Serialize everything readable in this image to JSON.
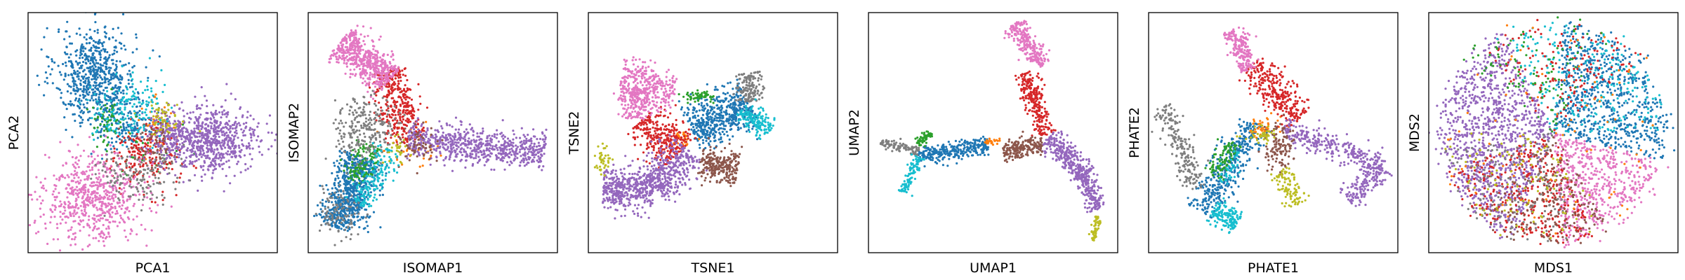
{
  "chart_data": [
    {
      "type": "scatter",
      "xlabel": "PCA1",
      "ylabel": "PCA2",
      "xlim": [
        0,
        10
      ],
      "ylim": [
        0,
        10
      ],
      "grid": false,
      "series": [
        {
          "color": "#1f77b4",
          "clusters": [
            {
              "cx": 2.7,
              "cy": 7.4,
              "sx": 0.8,
              "sy": 1.0,
              "n": 650
            },
            {
              "cx": 3.9,
              "cy": 5.4,
              "sx": 0.6,
              "sy": 0.6,
              "n": 150
            }
          ]
        },
        {
          "color": "#ff7f0e",
          "clusters": [
            {
              "cx": 5.2,
              "cy": 5.3,
              "sx": 0.5,
              "sy": 0.5,
              "n": 40
            }
          ]
        },
        {
          "color": "#2ca02c",
          "clusters": [
            {
              "cx": 3.2,
              "cy": 5.4,
              "sx": 0.4,
              "sy": 0.5,
              "n": 60
            },
            {
              "cx": 5.1,
              "cy": 4.2,
              "sx": 0.6,
              "sy": 0.6,
              "n": 30
            }
          ]
        },
        {
          "color": "#d62728",
          "clusters": [
            {
              "cx": 4.7,
              "cy": 4.0,
              "sx": 0.7,
              "sy": 0.7,
              "n": 200
            }
          ]
        },
        {
          "color": "#9467bd",
          "clusters": [
            {
              "cx": 7.3,
              "cy": 4.7,
              "sx": 1.0,
              "sy": 0.7,
              "n": 700
            },
            {
              "cx": 5.6,
              "cy": 4.8,
              "sx": 0.5,
              "sy": 0.5,
              "n": 150
            }
          ]
        },
        {
          "color": "#8c564b",
          "clusters": [
            {
              "cx": 5.0,
              "cy": 4.5,
              "sx": 0.5,
              "sy": 0.5,
              "n": 60
            }
          ]
        },
        {
          "color": "#e377c2",
          "clusters": [
            {
              "cx": 2.6,
              "cy": 2.3,
              "sx": 1.0,
              "sy": 0.9,
              "n": 650
            }
          ]
        },
        {
          "color": "#7f7f7f",
          "clusters": [
            {
              "cx": 4.4,
              "cy": 3.3,
              "sx": 0.8,
              "sy": 0.6,
              "n": 150
            }
          ]
        },
        {
          "color": "#bcbd22",
          "clusters": [
            {
              "cx": 5.4,
              "cy": 5.6,
              "sx": 0.4,
              "sy": 0.4,
              "n": 50
            }
          ]
        },
        {
          "color": "#17becf",
          "clusters": [
            {
              "cx": 4.0,
              "cy": 6.0,
              "sx": 0.7,
              "sy": 0.7,
              "n": 150
            }
          ]
        }
      ]
    },
    {
      "type": "scatter",
      "xlabel": "ISOMAP1",
      "ylabel": "ISOMAP2",
      "xlim": [
        0,
        10
      ],
      "ylim": [
        0,
        10
      ],
      "grid": false,
      "series": [
        {
          "color": "#1f77b4",
          "clusters": [
            {
              "x1": 2.2,
              "y1": 4.0,
              "x2": 1.2,
              "y2": 1.0,
              "w": 0.45,
              "n": 700
            }
          ]
        },
        {
          "color": "#ff7f0e",
          "clusters": [
            {
              "cx": 4.2,
              "cy": 4.6,
              "sx": 0.5,
              "sy": 0.5,
              "n": 40
            }
          ]
        },
        {
          "color": "#2ca02c",
          "clusters": [
            {
              "x1": 2.5,
              "y1": 4.5,
              "x2": 1.8,
              "y2": 3.0,
              "w": 0.3,
              "n": 120
            }
          ]
        },
        {
          "color": "#d62728",
          "clusters": [
            {
              "x1": 3.2,
              "y1": 7.6,
              "x2": 4.0,
              "y2": 4.6,
              "w": 0.4,
              "n": 350
            }
          ]
        },
        {
          "color": "#9467bd",
          "clusters": [
            {
              "x1": 4.0,
              "y1": 4.7,
              "x2": 9.5,
              "y2": 4.2,
              "w": 0.35,
              "n": 700
            }
          ]
        },
        {
          "color": "#8c564b",
          "clusters": [
            {
              "cx": 4.4,
              "cy": 4.5,
              "sx": 0.4,
              "sy": 0.4,
              "n": 60
            }
          ]
        },
        {
          "color": "#e377c2",
          "clusters": [
            {
              "x1": 1.3,
              "y1": 8.8,
              "x2": 3.3,
              "y2": 7.2,
              "w": 0.4,
              "n": 550
            }
          ]
        },
        {
          "color": "#7f7f7f",
          "clusters": [
            {
              "cx": 2.3,
              "cy": 5.1,
              "sx": 0.6,
              "sy": 0.7,
              "n": 250
            },
            {
              "cx": 1.2,
              "cy": 1.8,
              "sx": 0.4,
              "sy": 0.5,
              "n": 100
            }
          ]
        },
        {
          "color": "#bcbd22",
          "clusters": [
            {
              "cx": 3.6,
              "cy": 4.3,
              "sx": 0.3,
              "sy": 0.3,
              "n": 30
            }
          ]
        },
        {
          "color": "#17becf",
          "clusters": [
            {
              "x1": 3.3,
              "y1": 4.3,
              "x2": 2.0,
              "y2": 2.0,
              "w": 0.3,
              "n": 150
            }
          ]
        }
      ]
    },
    {
      "type": "scatter",
      "xlabel": "TSNE1",
      "ylabel": "TSNE2",
      "xlim": [
        0,
        10
      ],
      "ylim": [
        0,
        10
      ],
      "grid": false,
      "series": [
        {
          "color": "#1f77b4",
          "clusters": [
            {
              "x1": 4.1,
              "y1": 5.1,
              "x2": 6.5,
              "y2": 6.2,
              "w": 0.5,
              "n": 500
            }
          ]
        },
        {
          "color": "#ff7f0e",
          "clusters": [
            {
              "cx": 3.8,
              "cy": 4.7,
              "sx": 0.2,
              "sy": 0.2,
              "n": 30
            }
          ]
        },
        {
          "color": "#2ca02c",
          "clusters": [
            {
              "cx": 4.4,
              "cy": 6.5,
              "sx": 0.3,
              "sy": 0.1,
              "n": 60
            }
          ]
        },
        {
          "color": "#d62728",
          "clusters": [
            {
              "x1": 2.2,
              "y1": 5.6,
              "x2": 3.6,
              "y2": 4.1,
              "w": 0.45,
              "n": 300
            }
          ]
        },
        {
          "color": "#9467bd",
          "clusters": [
            {
              "x1": 0.6,
              "y1": 2.7,
              "x2": 2.6,
              "y2": 2.6,
              "w": 0.45,
              "n": 400
            },
            {
              "x1": 2.6,
              "y1": 2.6,
              "x2": 4.0,
              "y2": 4.3,
              "w": 0.45,
              "n": 350
            }
          ]
        },
        {
          "color": "#8c564b",
          "clusters": [
            {
              "x1": 4.5,
              "y1": 3.8,
              "x2": 6.0,
              "y2": 3.5,
              "w": 0.35,
              "n": 250
            }
          ]
        },
        {
          "color": "#e377c2",
          "clusters": [
            {
              "x1": 1.3,
              "y1": 7.1,
              "x2": 3.5,
              "y2": 6.8,
              "w": 0.45,
              "n": 300
            },
            {
              "x1": 1.9,
              "y1": 6.9,
              "x2": 1.9,
              "y2": 5.6,
              "w": 0.35,
              "n": 150
            }
          ]
        },
        {
          "color": "#7f7f7f",
          "clusters": [
            {
              "x1": 6.4,
              "y1": 7.5,
              "x2": 6.5,
              "y2": 6.3,
              "w": 0.25,
              "n": 150
            }
          ]
        },
        {
          "color": "#bcbd22",
          "clusters": [
            {
              "cx": 0.6,
              "cy": 3.8,
              "sx": 0.15,
              "sy": 0.3,
              "n": 40
            }
          ]
        },
        {
          "color": "#17becf",
          "clusters": [
            {
              "x1": 6.2,
              "y1": 6.0,
              "x2": 7.2,
              "y2": 5.0,
              "w": 0.25,
              "n": 150
            }
          ]
        }
      ]
    },
    {
      "type": "scatter",
      "xlabel": "UMAP1",
      "ylabel": "UMAP2",
      "xlim": [
        0,
        10
      ],
      "ylim": [
        0,
        10
      ],
      "grid": false,
      "series": [
        {
          "color": "#1f77b4",
          "clusters": [
            {
              "x1": 2.0,
              "y1": 4.0,
              "x2": 4.8,
              "y2": 4.5,
              "w": 0.18,
              "n": 300
            }
          ]
        },
        {
          "color": "#ff7f0e",
          "clusters": [
            {
              "cx": 4.9,
              "cy": 4.6,
              "sx": 0.15,
              "sy": 0.1,
              "n": 30
            }
          ]
        },
        {
          "color": "#2ca02c",
          "clusters": [
            {
              "x1": 2.0,
              "y1": 4.5,
              "x2": 2.5,
              "y2": 5.0,
              "w": 0.1,
              "n": 60
            }
          ]
        },
        {
          "color": "#d62728",
          "clusters": [
            {
              "x1": 6.3,
              "y1": 7.5,
              "x2": 7.1,
              "y2": 4.9,
              "w": 0.2,
              "n": 250
            }
          ]
        },
        {
          "color": "#9467bd",
          "clusters": [
            {
              "x1": 7.2,
              "y1": 4.8,
              "x2": 8.7,
              "y2": 3.2,
              "w": 0.25,
              "n": 300
            },
            {
              "x1": 8.7,
              "y1": 3.2,
              "x2": 9.2,
              "y2": 1.8,
              "w": 0.2,
              "n": 150
            }
          ]
        },
        {
          "color": "#8c564b",
          "clusters": [
            {
              "x1": 5.4,
              "y1": 4.2,
              "x2": 7.0,
              "y2": 4.5,
              "w": 0.18,
              "n": 200
            }
          ]
        },
        {
          "color": "#e377c2",
          "clusters": [
            {
              "x1": 5.8,
              "y1": 9.5,
              "x2": 7.0,
              "y2": 7.8,
              "w": 0.22,
              "n": 250
            }
          ]
        },
        {
          "color": "#7f7f7f",
          "clusters": [
            {
              "x1": 0.5,
              "y1": 4.6,
              "x2": 2.0,
              "y2": 4.2,
              "w": 0.1,
              "n": 100
            }
          ]
        },
        {
          "color": "#bcbd22",
          "clusters": [
            {
              "x1": 9.2,
              "y1": 1.5,
              "x2": 9.0,
              "y2": 0.5,
              "w": 0.08,
              "n": 50
            }
          ]
        },
        {
          "color": "#17becf",
          "clusters": [
            {
              "x1": 2.0,
              "y1": 4.0,
              "x2": 1.4,
              "y2": 2.5,
              "w": 0.12,
              "n": 100
            }
          ]
        }
      ]
    },
    {
      "type": "scatter",
      "xlabel": "PHATE1",
      "ylabel": "PHATE2",
      "xlim": [
        0,
        10
      ],
      "ylim": [
        0,
        10
      ],
      "grid": false,
      "series": [
        {
          "color": "#1f77b4",
          "clusters": [
            {
              "x1": 2.1,
              "y1": 1.7,
              "x2": 4.3,
              "y2": 5.4,
              "w": 0.35,
              "n": 400
            }
          ]
        },
        {
          "color": "#ff7f0e",
          "clusters": [
            {
              "cx": 4.5,
              "cy": 5.2,
              "sx": 0.3,
              "sy": 0.2,
              "n": 40
            }
          ]
        },
        {
          "color": "#2ca02c",
          "clusters": [
            {
              "x1": 2.6,
              "y1": 3.2,
              "x2": 3.4,
              "y2": 4.6,
              "w": 0.2,
              "n": 100
            }
          ]
        },
        {
          "color": "#d62728",
          "clusters": [
            {
              "x1": 4.1,
              "y1": 7.8,
              "x2": 6.1,
              "y2": 5.6,
              "w": 0.35,
              "n": 300
            }
          ]
        },
        {
          "color": "#9467bd",
          "clusters": [
            {
              "x1": 5.4,
              "y1": 5.2,
              "x2": 9.4,
              "y2": 3.6,
              "w": 0.25,
              "n": 300
            },
            {
              "x1": 9.4,
              "y1": 3.6,
              "x2": 8.0,
              "y2": 2.2,
              "w": 0.25,
              "n": 150
            }
          ]
        },
        {
          "color": "#8c564b",
          "clusters": [
            {
              "cx": 5.2,
              "cy": 4.4,
              "sx": 0.3,
              "sy": 0.5,
              "n": 120
            }
          ]
        },
        {
          "color": "#e377c2",
          "clusters": [
            {
              "x1": 3.4,
              "y1": 9.3,
              "x2": 4.0,
              "y2": 7.6,
              "w": 0.22,
              "n": 200
            }
          ]
        },
        {
          "color": "#7f7f7f",
          "clusters": [
            {
              "x1": 0.6,
              "y1": 6.1,
              "x2": 2.0,
              "y2": 2.6,
              "w": 0.25,
              "n": 200
            }
          ]
        },
        {
          "color": "#bcbd22",
          "clusters": [
            {
              "x1": 5.4,
              "y1": 3.5,
              "x2": 6.0,
              "y2": 2.0,
              "w": 0.25,
              "n": 100
            },
            {
              "cx": 4.5,
              "cy": 5.0,
              "sx": 0.3,
              "sy": 0.2,
              "n": 40
            }
          ]
        },
        {
          "color": "#17becf",
          "clusters": [
            {
              "x1": 2.6,
              "y1": 1.8,
              "x2": 3.6,
              "y2": 1.2,
              "w": 0.25,
              "n": 150
            },
            {
              "x1": 3.0,
              "y1": 2.8,
              "x2": 3.6,
              "y2": 4.2,
              "w": 0.15,
              "n": 40
            }
          ]
        }
      ]
    },
    {
      "type": "scatter",
      "xlabel": "MDS1",
      "ylabel": "MDS2",
      "xlim": [
        0,
        10
      ],
      "ylim": [
        0,
        10
      ],
      "grid": false,
      "series": [
        {
          "color": "#9467bd",
          "clusters": [
            {
              "disk": true,
              "cx": 5,
              "cy": 5,
              "r": 4.5,
              "a0": 115,
              "a1": 250,
              "n": 1100
            }
          ]
        },
        {
          "color": "#1f77b4",
          "clusters": [
            {
              "disk": true,
              "cx": 5,
              "cy": 5,
              "r": 4.5,
              "a0": -15,
              "a1": 85,
              "n": 700
            }
          ]
        },
        {
          "color": "#e377c2",
          "clusters": [
            {
              "disk": true,
              "cx": 5,
              "cy": 5,
              "r": 4.5,
              "a0": -85,
              "a1": -15,
              "n": 550
            }
          ]
        },
        {
          "color": "#17becf",
          "clusters": [
            {
              "disk": true,
              "cx": 5,
              "cy": 5,
              "r": 4.5,
              "a0": 0,
              "a1": 120,
              "n": 250
            }
          ]
        },
        {
          "color": "#d62728",
          "clusters": [
            {
              "disk": true,
              "cx": 5,
              "cy": 5,
              "r": 4.5,
              "a0": 200,
              "a1": 290,
              "n": 350
            },
            {
              "disk": true,
              "cx": 5,
              "cy": 5,
              "r": 4.5,
              "a0": 40,
              "a1": 130,
              "n": 150
            }
          ]
        },
        {
          "color": "#8c564b",
          "clusters": [
            {
              "disk": true,
              "cx": 5,
              "cy": 5,
              "r": 4.5,
              "a0": 230,
              "a1": 300,
              "n": 200
            }
          ]
        },
        {
          "color": "#7f7f7f",
          "clusters": [
            {
              "disk": true,
              "cx": 5,
              "cy": 5,
              "r": 4.5,
              "a0": 190,
              "a1": 280,
              "n": 150
            }
          ]
        },
        {
          "color": "#2ca02c",
          "clusters": [
            {
              "disk": true,
              "cx": 5,
              "cy": 5,
              "r": 4.5,
              "a0": 60,
              "a1": 140,
              "n": 100
            }
          ]
        },
        {
          "color": "#bcbd22",
          "clusters": [
            {
              "disk": true,
              "cx": 5,
              "cy": 5,
              "r": 4.5,
              "a0": 180,
              "a1": 300,
              "n": 100
            }
          ]
        },
        {
          "color": "#ff7f0e",
          "clusters": [
            {
              "disk": true,
              "cx": 5,
              "cy": 5,
              "r": 4.5,
              "a0": 0,
              "a1": 360,
              "n": 80
            }
          ]
        }
      ]
    }
  ]
}
